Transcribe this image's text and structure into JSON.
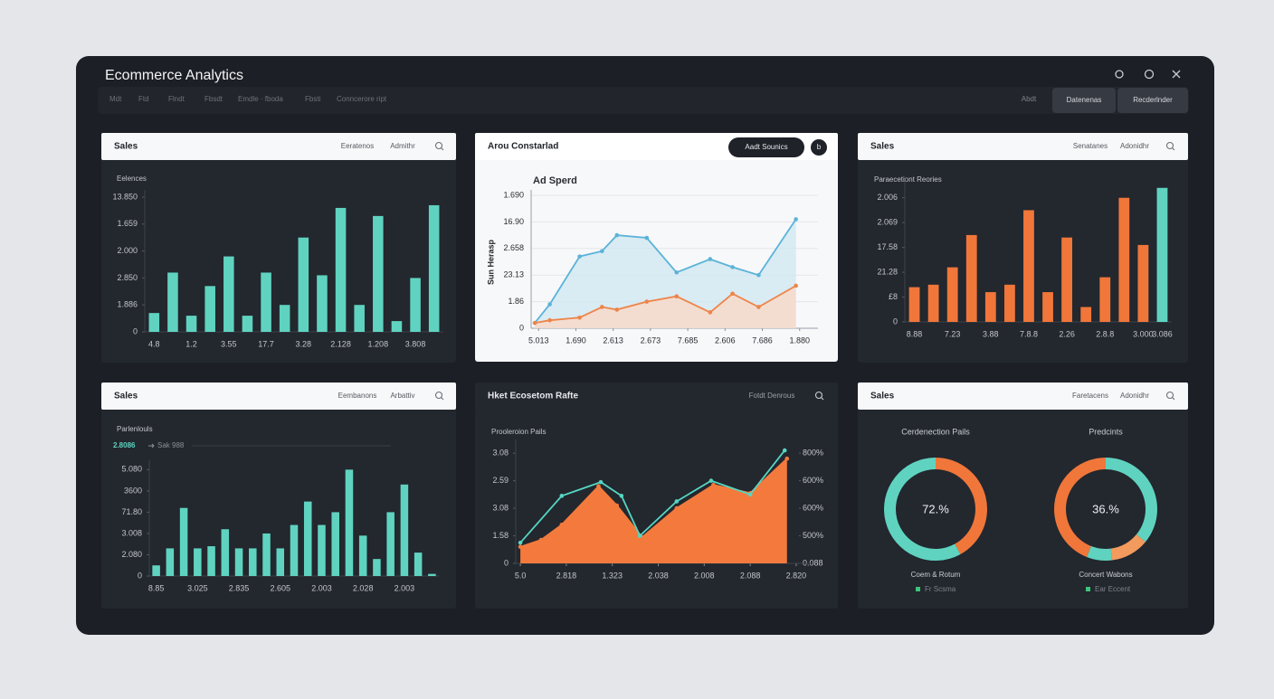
{
  "header": {
    "title": "Ecommerce Analytics",
    "nav": [
      "Mdt",
      "Ftd",
      "Flndt",
      "Fbsdt",
      "Emdle · fboda",
      "Fbsti",
      "Conncerore ript"
    ],
    "right_link": "Abdt",
    "buttons": [
      "Datenenas",
      "Recderlnder"
    ]
  },
  "panels": [
    {
      "title": "Sales",
      "tabs": [
        "Eeratenos",
        "Admithr"
      ],
      "chart_data": {
        "type": "bar",
        "subtitle": "Eelences",
        "categories": [
          "4.8",
          null,
          "1.2",
          null,
          "3.55",
          null,
          "17.7",
          null,
          "3.28",
          null,
          "2.128",
          null,
          "1.208",
          null,
          "3.808",
          null
        ],
        "values": [
          0.7,
          2.2,
          0.6,
          1.7,
          2.8,
          0.6,
          2.2,
          1.0,
          3.5,
          2.1,
          4.6,
          1.0,
          4.3,
          0.4,
          2.0,
          4.7
        ],
        "color": "#5fd3c0",
        "ylim": [
          0,
          5
        ],
        "yticks": [
          0,
          {
            "value": 1,
            "label": "1.886"
          },
          {
            "value": 2,
            "label": "2.850"
          },
          {
            "value": 3,
            "label": "2.000"
          },
          {
            "value": 4,
            "label": "1.659"
          },
          {
            "value": 5,
            "label": "13.850"
          }
        ],
        "grid": false
      }
    },
    {
      "title": "Arou Constarlad",
      "button": "Aadt Sounics",
      "icon_label": "b",
      "chart_data": {
        "type": "line",
        "subtitle": "Ad Sperd",
        "y_label": "Sun Herasp",
        "x": [
          -0.1,
          0.3,
          1.1,
          1.7,
          2.1,
          2.9,
          3.7,
          4.6,
          5.2,
          5.9,
          6.9
        ],
        "series": [
          {
            "color": "#5bb3d8",
            "fill": "#cfe7f0",
            "values": [
              0.2,
              0.9,
              2.7,
              2.9,
              3.5,
              3.4,
              2.1,
              2.6,
              2.3,
              2.0,
              4.1
            ]
          },
          {
            "color": "#ee8449",
            "fill": "#fbd8c4",
            "values": [
              0.2,
              0.3,
              0.4,
              0.8,
              0.7,
              1.0,
              1.2,
              0.6,
              1.3,
              0.8,
              1.6
            ]
          }
        ],
        "xlim": [
          -0.2,
          7.2
        ],
        "xticks": [
          {
            "value": 0,
            "label": "5.013"
          },
          {
            "value": 1,
            "label": "1.690"
          },
          {
            "value": 2,
            "label": "2.613"
          },
          {
            "value": 3,
            "label": "2.673"
          },
          {
            "value": 4,
            "label": "7.685"
          },
          {
            "value": 5,
            "label": "2.606"
          },
          {
            "value": 6,
            "label": "7.686"
          },
          {
            "value": 7,
            "label": "1.880"
          }
        ],
        "ylim": [
          0,
          5
        ],
        "yticks": [
          0,
          {
            "value": 1,
            "label": "1.86"
          },
          {
            "value": 2,
            "label": "23.13"
          },
          {
            "value": 3,
            "label": "2.658"
          },
          {
            "value": 4,
            "label": "16.90"
          },
          {
            "value": 5,
            "label": "1.690"
          }
        ],
        "grid": true
      }
    },
    {
      "title": "Sales",
      "tabs": [
        "Senatanes",
        "Adonidhr"
      ],
      "chart_data": {
        "type": "bar",
        "subtitle": "Paraecetiont Reories",
        "categories": [
          "8.88",
          null,
          "7.23",
          null,
          "3.88",
          null,
          "7.8.8",
          null,
          "2.26",
          null,
          "2.8.8",
          null,
          "3.000",
          "3.086"
        ],
        "values": [
          1.4,
          1.5,
          2.2,
          3.5,
          1.2,
          1.5,
          4.5,
          1.2,
          3.4,
          0.6,
          1.8,
          5.0,
          3.1,
          5.4
        ],
        "colors": [
          "#f0763a",
          "#f0763a",
          "#f0763a",
          "#f0763a",
          "#f0763a",
          "#f0763a",
          "#f0763a",
          "#f0763a",
          "#f0763a",
          "#f0763a",
          "#f0763a",
          "#f0763a",
          "#f0763a",
          "#5fd3c0"
        ],
        "ylim": [
          0,
          5.5
        ],
        "yticks": [
          0,
          {
            "value": 1,
            "label": "£8"
          },
          {
            "value": 2,
            "label": "21.28"
          },
          {
            "value": 3,
            "label": "17.58"
          },
          {
            "value": 4,
            "label": "2.069"
          },
          {
            "value": 5,
            "label": "2.006"
          }
        ],
        "grid": false
      }
    },
    {
      "title": "Sales",
      "tabs": [
        "Eembanons",
        "Arbattiv"
      ],
      "chart_data": {
        "type": "bar",
        "subtitle": "Parlenlouls",
        "annotations": [
          "2.8086",
          "Sak 988"
        ],
        "categories": [
          "8.85",
          null,
          null,
          "3.025",
          null,
          null,
          "2.835",
          null,
          null,
          "2.605",
          null,
          null,
          "2.003",
          null,
          null,
          "2.028",
          null,
          null,
          "2.003",
          null,
          null
        ],
        "values": [
          0.5,
          1.3,
          3.2,
          1.3,
          1.4,
          2.2,
          1.3,
          1.3,
          2.0,
          1.3,
          2.4,
          3.5,
          2.4,
          3.0,
          5.0,
          1.9,
          0.8,
          3.0,
          4.3,
          1.1,
          0.1
        ],
        "color": "#5fd3c0",
        "ylim": [
          0,
          5.1
        ],
        "yticks": [
          0,
          {
            "value": 1,
            "label": "2.080"
          },
          {
            "value": 2,
            "label": "3.008"
          },
          {
            "value": 3,
            "label": "71.80"
          },
          {
            "value": 4,
            "label": "3600"
          },
          {
            "value": 5,
            "label": "5.080"
          }
        ],
        "grid": false
      }
    },
    {
      "title": "Hket Ecosetom Rafte",
      "tabs": [
        "Fotdt Denrous"
      ],
      "chart_data": {
        "type": "line",
        "subtitle": "Prooleroion Pails",
        "series": [
          {
            "color": "#f37a3c",
            "fill": "#f37a3c",
            "x": [
              0.0,
              0.45,
              0.9,
              1.7,
              2.1,
              2.65,
              3.4,
              4.2,
              5.0,
              5.8
            ],
            "values": [
              0.6,
              0.85,
              1.4,
              2.8,
              2.1,
              0.95,
              2.0,
              2.85,
              2.55,
              3.8
            ]
          },
          {
            "color": "#55d6c2",
            "axis": "y2",
            "x": [
              0.0,
              0.9,
              1.75,
              2.2,
              2.6,
              3.4,
              4.15,
              5.0,
              5.75
            ],
            "values": [
              0.75,
              2.45,
              2.95,
              2.45,
              1.0,
              2.25,
              3.0,
              2.5,
              4.1
            ]
          }
        ],
        "xlim": [
          -0.1,
          6.1
        ],
        "xticks": [
          {
            "value": 0,
            "label": "5.0"
          },
          {
            "value": 1,
            "label": "2.818"
          },
          {
            "value": 2,
            "label": "1.323"
          },
          {
            "value": 3,
            "label": "2.038"
          },
          {
            "value": 4,
            "label": "2.008"
          },
          {
            "value": 5,
            "label": "2.088"
          },
          {
            "value": 6,
            "label": "2.820"
          }
        ],
        "ylim": [
          0,
          4.3
        ],
        "yticks": [
          0,
          {
            "value": 1,
            "label": "1.58"
          },
          {
            "value": 2,
            "label": "3.08"
          },
          {
            "value": 3,
            "label": "2.59"
          },
          {
            "value": 4,
            "label": "3.08"
          }
        ],
        "y2lim": [
          0,
          4.3
        ],
        "y2ticks": [
          {
            "value": 0,
            "label": "0.088"
          },
          {
            "value": 1,
            "label": "500%"
          },
          {
            "value": 2,
            "label": "600%"
          },
          {
            "value": 3,
            "label": "600%"
          },
          {
            "value": 4,
            "label": "800%"
          }
        ],
        "grid": false
      }
    },
    {
      "title": "Sales",
      "tabs": [
        "Faretacens",
        "Adonidhr"
      ],
      "chart_data": [
        {
          "type": "donut",
          "title": "Cerdenection Pails",
          "center_label": "72.%",
          "caption": "Coem & Rotum",
          "legend": "Fr Scsma",
          "values": [
            42,
            58
          ],
          "colors": [
            "#f0763a",
            "#5fd3c0"
          ]
        },
        {
          "type": "donut",
          "title": "Predcints",
          "center_label": "36.%",
          "caption": "Concert Wabons",
          "legend": "Ear Eccent",
          "values": [
            36,
            12,
            8,
            44
          ],
          "colors": [
            "#5fd3c0",
            "#f39a5e",
            "#5fd3c0",
            "#f0763a"
          ]
        }
      ]
    }
  ]
}
